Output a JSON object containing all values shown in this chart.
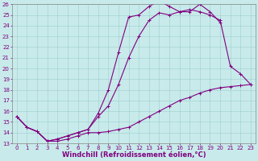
{
  "xlabel": "Windchill (Refroidissement éolien,°C)",
  "background_color": "#c8eaea",
  "line_color": "#800080",
  "xlim": [
    -0.5,
    23.5
  ],
  "ylim": [
    13,
    26
  ],
  "xticks": [
    0,
    1,
    2,
    3,
    4,
    5,
    6,
    7,
    8,
    9,
    10,
    11,
    12,
    13,
    14,
    15,
    16,
    17,
    18,
    19,
    20,
    21,
    22,
    23
  ],
  "yticks": [
    13,
    14,
    15,
    16,
    17,
    18,
    19,
    20,
    21,
    22,
    23,
    24,
    25,
    26
  ],
  "line1_x": [
    0,
    1,
    2,
    3,
    4,
    5,
    6,
    7,
    8,
    9,
    10,
    11,
    12,
    13,
    14,
    15,
    16,
    17,
    18,
    19,
    20,
    21,
    22,
    23
  ],
  "line1_y": [
    15.5,
    14.5,
    14.1,
    13.2,
    13.2,
    13.4,
    13.7,
    14.0,
    14.0,
    14.1,
    14.3,
    14.5,
    15.0,
    15.5,
    16.0,
    16.5,
    17.0,
    17.3,
    17.7,
    18.0,
    18.2,
    18.3,
    18.4,
    18.5
  ],
  "line2_x": [
    0,
    1,
    2,
    3,
    4,
    5,
    6,
    7,
    8,
    9,
    10,
    11,
    12,
    13,
    14,
    15,
    16,
    17,
    18,
    19,
    20,
    21,
    22,
    23
  ],
  "line2_y": [
    15.5,
    14.5,
    14.1,
    13.2,
    13.4,
    13.7,
    14.0,
    14.3,
    15.5,
    16.5,
    18.5,
    21.0,
    23.0,
    24.5,
    25.2,
    25.0,
    25.3,
    25.5,
    25.3,
    25.0,
    24.5,
    20.2,
    19.5,
    18.5
  ],
  "line3_x": [
    0,
    1,
    2,
    3,
    4,
    5,
    6,
    7,
    8,
    9,
    10,
    11,
    12,
    13,
    14,
    15,
    16,
    17,
    18,
    19,
    20
  ],
  "line3_y": [
    15.5,
    14.5,
    14.1,
    13.2,
    13.4,
    13.7,
    14.0,
    14.3,
    15.8,
    18.0,
    21.5,
    24.8,
    25.0,
    25.8,
    26.3,
    25.8,
    25.3,
    25.3,
    26.0,
    25.3,
    24.3
  ],
  "marker": "+",
  "markersize": 3,
  "linewidth": 0.8,
  "tick_fontsize": 5,
  "label_fontsize": 6
}
